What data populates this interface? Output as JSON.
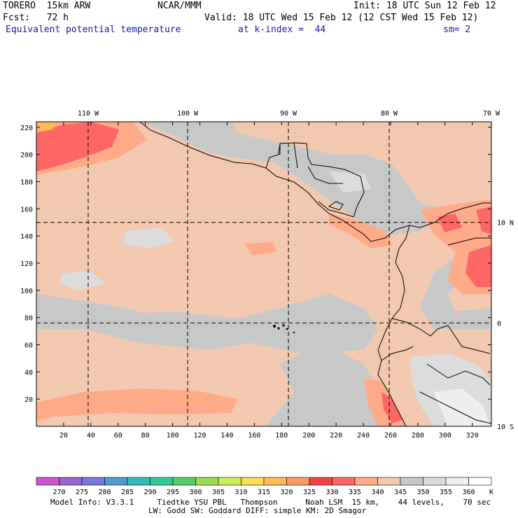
{
  "header": {
    "model": "TORERO  15km ARW",
    "center": "NCAR/MMM",
    "init": "Init: 18 UTC Sun 12 Feb 12",
    "fcst": "Fcst:   72 h",
    "valid": "Valid: 18 UTC Wed 15 Feb 12 (12 CST Wed 15 Feb 12)",
    "field": "Equivalent potential temperature",
    "level": "at k-index =  44",
    "smooth": "sm= 2"
  },
  "map": {
    "top_lon_labels": [
      "110 W",
      "100 W",
      "90 W",
      "80 W",
      "70 W"
    ],
    "right_lat_labels": [
      "10 N",
      "0",
      "10 S"
    ],
    "grid_x_ticks": [
      20,
      40,
      60,
      80,
      100,
      120,
      140,
      160,
      180,
      200,
      220,
      240,
      260,
      280,
      300,
      320
    ],
    "grid_y_ticks": [
      20,
      40,
      60,
      80,
      100,
      120,
      140,
      160,
      180,
      200,
      220
    ],
    "grid_x_max": 334,
    "grid_y_max": 224,
    "meridian_grid_x": [
      38,
      111,
      185,
      259
    ],
    "parallel_grid_y": [
      150,
      76
    ]
  },
  "colorbar": {
    "levels": [
      270,
      275,
      280,
      285,
      290,
      295,
      300,
      305,
      310,
      315,
      320,
      325,
      330,
      335,
      340,
      345,
      350,
      355,
      360
    ],
    "colors": [
      "#cc55cc",
      "#9966cc",
      "#7777dd",
      "#5599cc",
      "#33bbbb",
      "#33cc99",
      "#55cc66",
      "#99dd55",
      "#ccee55",
      "#ffdd55",
      "#ffbb55",
      "#ff9966",
      "#ee4444",
      "#ff6666",
      "#ffaa88",
      "#f2c8b0",
      "#c8c8c8",
      "#dcdcdc",
      "#efefef",
      "#ffffff"
    ],
    "unit": "K"
  },
  "footer": {
    "line1": "Model Info: V3.3.1     Tiedtke YSU PBL   Thompson      Noah LSM  15 km,    44 levels,    70 sec",
    "line2": "LW: Godd SW: Goddard DIFF: simple KM: 2D Smagor"
  }
}
